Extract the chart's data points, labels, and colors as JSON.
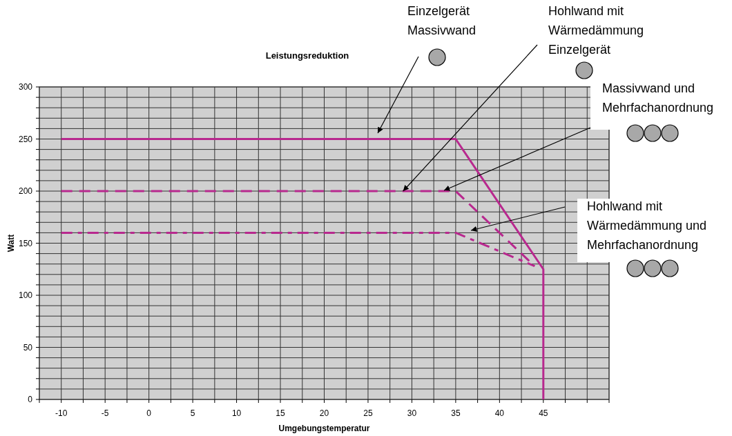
{
  "chart_data": {
    "type": "line",
    "title": "Leistungsreduktion",
    "xlabel": "Umgebungstemperatur",
    "ylabel": "Watt",
    "xlim": [
      -12.5,
      52.5
    ],
    "ylim": [
      0,
      300
    ],
    "xticks": [
      {
        "value": -12.5,
        "label": null
      },
      -10,
      {
        "value": -7.5,
        "label": null
      },
      -5,
      {
        "value": -2.5,
        "label": null
      },
      0,
      {
        "value": 2.5,
        "label": null
      },
      5,
      {
        "value": 7.5,
        "label": null
      },
      10,
      {
        "value": 12.5,
        "label": null
      },
      15,
      {
        "value": 17.5,
        "label": null
      },
      20,
      {
        "value": 22.5,
        "label": null
      },
      25,
      {
        "value": 27.5,
        "label": null
      },
      30,
      {
        "value": 32.5,
        "label": null
      },
      35,
      {
        "value": 37.5,
        "label": null
      },
      40,
      {
        "value": 42.5,
        "label": null
      },
      45,
      {
        "value": 47.5,
        "label": null
      },
      {
        "value": 50,
        "label": null
      },
      {
        "value": 52.5,
        "label": null
      }
    ],
    "yticks": [
      0,
      {
        "value": 10,
        "label": null
      },
      {
        "value": 20,
        "label": null
      },
      {
        "value": 30,
        "label": null
      },
      {
        "value": 40,
        "label": null
      },
      50,
      {
        "value": 60,
        "label": null
      },
      {
        "value": 70,
        "label": null
      },
      {
        "value": 80,
        "label": null
      },
      {
        "value": 90,
        "label": null
      },
      100,
      {
        "value": 110,
        "label": null
      },
      {
        "value": 120,
        "label": null
      },
      {
        "value": 130,
        "label": null
      },
      {
        "value": 140,
        "label": null
      },
      150,
      {
        "value": 160,
        "label": null
      },
      {
        "value": 170,
        "label": null
      },
      {
        "value": 180,
        "label": null
      },
      {
        "value": 190,
        "label": null
      },
      200,
      {
        "value": 210,
        "label": null
      },
      {
        "value": 220,
        "label": null
      },
      {
        "value": 230,
        "label": null
      },
      {
        "value": 240,
        "label": null
      },
      250,
      {
        "value": 260,
        "label": null
      },
      {
        "value": 270,
        "label": null
      },
      {
        "value": 280,
        "label": null
      },
      {
        "value": 290,
        "label": null
      },
      300
    ],
    "grid": true,
    "marker": "none",
    "series": [
      {
        "color": "#b8288e",
        "line_style": "solid",
        "x": [
          -10,
          35,
          45,
          45
        ],
        "values": [
          250,
          250,
          125,
          0
        ]
      },
      {
        "color": "#b8288e",
        "line_style": "dashed",
        "x": [
          -10,
          35,
          44
        ],
        "values": [
          200,
          200,
          128
        ]
      },
      {
        "color": "#b8288e",
        "line_style": "dashdot",
        "x": [
          -10,
          35,
          44
        ],
        "values": [
          160,
          160,
          128
        ]
      }
    ],
    "annotations": [
      "Einzelgerät\nMassivwand",
      {
        "text": "Hohlwand mit\nWärmedämmung\nEinzelgerät",
        "x": 29,
        "y": 200
      },
      "Massivwand und\nMehrfachanordnung",
      "Hohlwand mit\nWärmedämmung und\nMehrfachanordnung"
    ]
  }
}
